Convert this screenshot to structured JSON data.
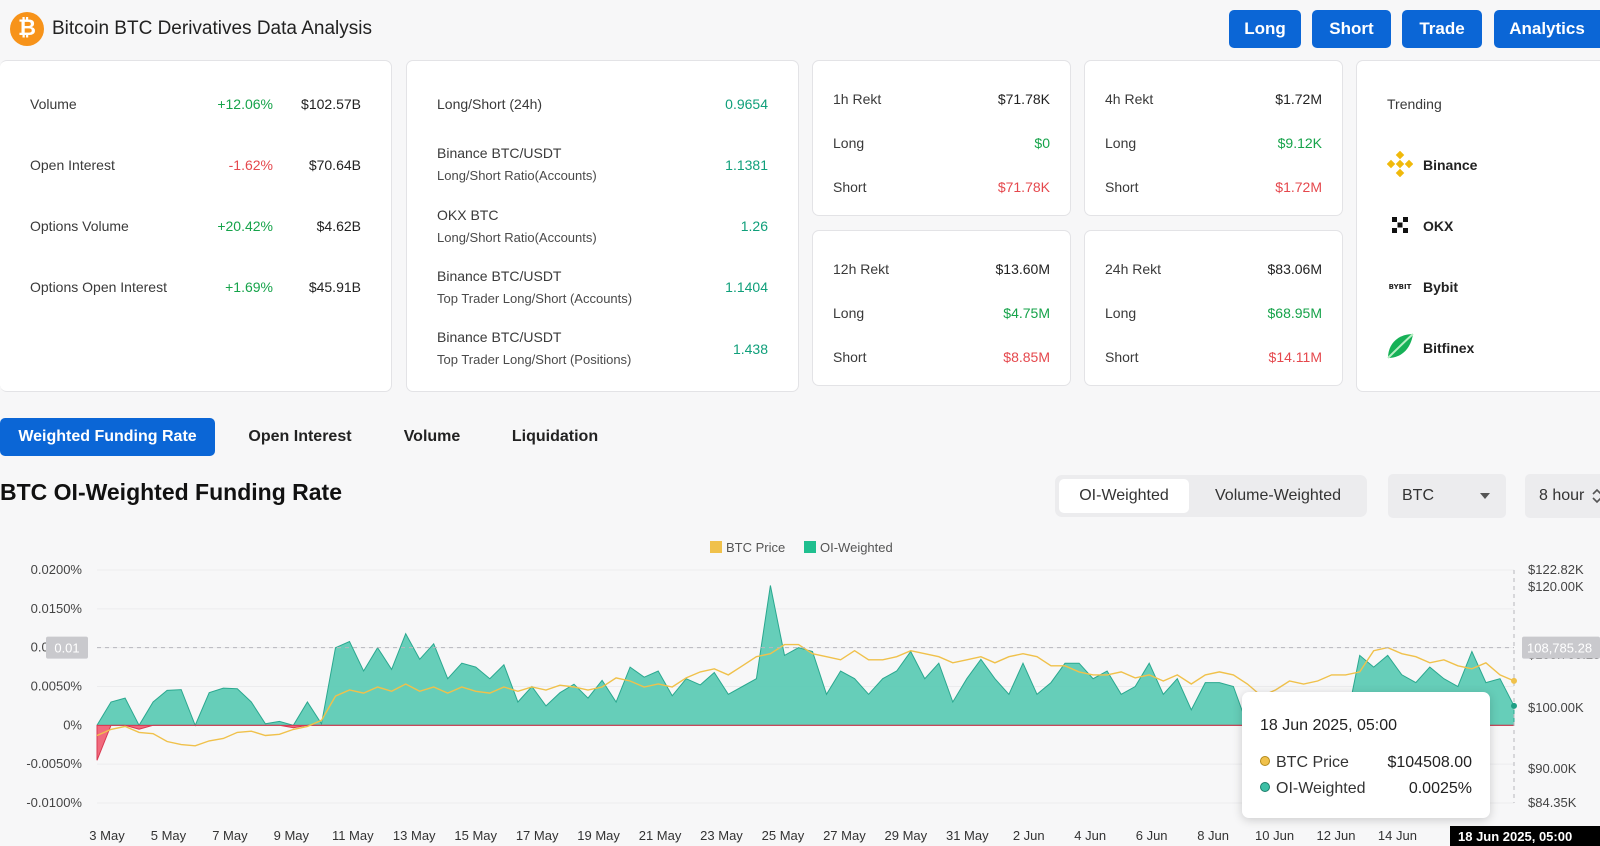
{
  "header": {
    "logo_glyph": "₿",
    "title": "Bitcoin BTC Derivatives Data Analysis",
    "buttons": [
      "Long",
      "Short",
      "Trade",
      "Analytics"
    ]
  },
  "stats": [
    {
      "label": "Volume",
      "change": "+12.06%",
      "value": "$102.57B"
    },
    {
      "label": "Open Interest",
      "change": "-1.62%",
      "value": "$70.64B"
    },
    {
      "label": "Options Volume",
      "change": "+20.42%",
      "value": "$4.62B"
    },
    {
      "label": "Options Open Interest",
      "change": "+1.69%",
      "value": "$45.91B"
    }
  ],
  "ratios": {
    "header_label": "Long/Short (24h)",
    "header_value": "0.9654",
    "items": [
      {
        "label": "Binance BTC/USDT",
        "sub": "Long/Short Ratio(Accounts)",
        "value": "1.1381"
      },
      {
        "label": "OKX BTC",
        "sub": "Long/Short Ratio(Accounts)",
        "value": "1.26"
      },
      {
        "label": "Binance BTC/USDT",
        "sub": "Top Trader Long/Short (Accounts)",
        "value": "1.1404"
      },
      {
        "label": "Binance BTC/USDT",
        "sub": "Top Trader Long/Short (Positions)",
        "value": "1.438"
      }
    ]
  },
  "rekt": {
    "long_label": "Long",
    "short_label": "Short",
    "cards": [
      {
        "title": "1h Rekt",
        "total": "$71.78K",
        "long": "$0",
        "short": "$71.78K"
      },
      {
        "title": "4h Rekt",
        "total": "$1.72M",
        "long": "$9.12K",
        "short": "$1.72M"
      },
      {
        "title": "12h Rekt",
        "total": "$13.60M",
        "long": "$4.75M",
        "short": "$8.85M"
      },
      {
        "title": "24h Rekt",
        "total": "$83.06M",
        "long": "$68.95M",
        "short": "$14.11M"
      }
    ]
  },
  "trending": {
    "title": "Trending",
    "exchanges": [
      {
        "name": "Binance",
        "icon": "binance-icon"
      },
      {
        "name": "OKX",
        "icon": "okx-icon"
      },
      {
        "name": "Bybit",
        "icon": "bybit-icon",
        "logo_text": "BYBIT"
      },
      {
        "name": "Bitfinex",
        "icon": "bitfinex-icon"
      }
    ]
  },
  "tabs": [
    "Weighted Funding Rate",
    "Open Interest",
    "Volume",
    "Liquidation"
  ],
  "chart_section": {
    "title": "BTC OI-Weighted Funding Rate",
    "weighting_options": [
      "OI-Weighted",
      "Volume-Weighted"
    ],
    "asset_select": "BTC",
    "interval_select": "8 hour"
  },
  "colors": {
    "accent": "#0b66d6",
    "btc_price": "#f0c14b",
    "oi_weighted": "#5ecbb5",
    "negative": "#ef5a6f"
  },
  "chart_data": {
    "type": "area",
    "legend": [
      "BTC Price",
      "OI-Weighted"
    ],
    "x_ticks": [
      "3 May",
      "5 May",
      "7 May",
      "9 May",
      "11 May",
      "13 May",
      "15 May",
      "17 May",
      "19 May",
      "21 May",
      "23 May",
      "25 May",
      "27 May",
      "29 May",
      "31 May",
      "2 Jun",
      "4 Jun",
      "6 Jun",
      "8 Jun",
      "10 Jun",
      "12 Jun",
      "14 Jun"
    ],
    "y_left_ticks": [
      "0.0200%",
      "0.0150%",
      "0.0100%",
      "0.0050%",
      "0%",
      "-0.0050%",
      "-0.0100%"
    ],
    "y_left_range": [
      -0.01,
      0.02
    ],
    "y_right_ticks": [
      "$122.82K",
      "$120.00K",
      "$108.785.28",
      "$100.00K",
      "$90.00K",
      "$84.35K"
    ],
    "y_right_range": [
      84350,
      122820
    ],
    "crosshair_left_label": "0.01",
    "crosshair_right_label": "108,785.28",
    "crosshair_x_label": "18 Jun 2025, 05:00",
    "series": [
      {
        "name": "OI-Weighted",
        "unit": "%",
        "values": [
          -0.0045,
          0.003,
          0.0035,
          -0.0005,
          0.003,
          0.0045,
          0.0046,
          0.0,
          0.0042,
          0.0048,
          0.0047,
          0.003,
          0.0002,
          0.0005,
          -0.0003,
          0.003,
          0.0002,
          0.01,
          0.0108,
          0.007,
          0.01,
          0.0072,
          0.0118,
          0.0085,
          0.0105,
          0.006,
          0.008,
          0.0075,
          0.006,
          0.0078,
          0.003,
          0.005,
          0.0025,
          0.0042,
          0.0053,
          0.0035,
          0.0058,
          0.003,
          0.0075,
          0.0062,
          0.007,
          0.0038,
          0.006,
          0.0052,
          0.0068,
          0.004,
          0.005,
          0.006,
          0.018,
          0.009,
          0.01,
          0.0095,
          0.004,
          0.007,
          0.006,
          0.004,
          0.006,
          0.007,
          0.0095,
          0.006,
          0.008,
          0.003,
          0.006,
          0.0085,
          0.006,
          0.004,
          0.008,
          0.004,
          0.0055,
          0.008,
          0.008,
          0.006,
          0.007,
          0.004,
          0.005,
          0.008,
          0.004,
          0.006,
          0.002,
          0.0055,
          0.0055,
          0.005,
          0.0,
          -0.0043,
          0.0,
          0.001,
          -0.0035,
          0.002,
          0.0025,
          -0.0055,
          0.009,
          0.0075,
          0.009,
          0.0065,
          0.0055,
          0.0075,
          0.006,
          0.005,
          0.0095,
          0.0055,
          0.006,
          0.0025
        ]
      },
      {
        "name": "BTC Price",
        "unit": "USD",
        "values": [
          95500,
          96500,
          97000,
          96000,
          95800,
          94500,
          94000,
          93800,
          94600,
          95000,
          96000,
          96200,
          95500,
          95700,
          96500,
          97000,
          98000,
          102000,
          103000,
          102500,
          103500,
          102800,
          104000,
          102800,
          103500,
          102500,
          103500,
          102800,
          102500,
          103500,
          102800,
          103500,
          103000,
          103800,
          103500,
          103000,
          103500,
          105000,
          104500,
          103500,
          104000,
          103500,
          105000,
          106000,
          106500,
          105500,
          107000,
          108500,
          109000,
          110500,
          110500,
          109000,
          108500,
          108000,
          109500,
          108000,
          108000,
          108500,
          109500,
          109000,
          108500,
          107500,
          108000,
          108500,
          107500,
          108500,
          109000,
          108500,
          107000,
          107000,
          106000,
          105500,
          105500,
          106000,
          105000,
          105500,
          104500,
          105500,
          104000,
          105500,
          106000,
          105500,
          104000,
          102000,
          103000,
          104500,
          104000,
          104500,
          105500,
          105500,
          106000,
          109500,
          110000,
          109000,
          108500,
          107500,
          108000,
          107000,
          106500,
          107500,
          105500,
          104508
        ]
      }
    ],
    "tooltip": {
      "title": "18 Jun 2025, 05:00",
      "btc_price_label": "BTC Price",
      "btc_price": "$104508.00",
      "oi_label": "OI-Weighted",
      "oi_value": "0.0025%"
    }
  }
}
